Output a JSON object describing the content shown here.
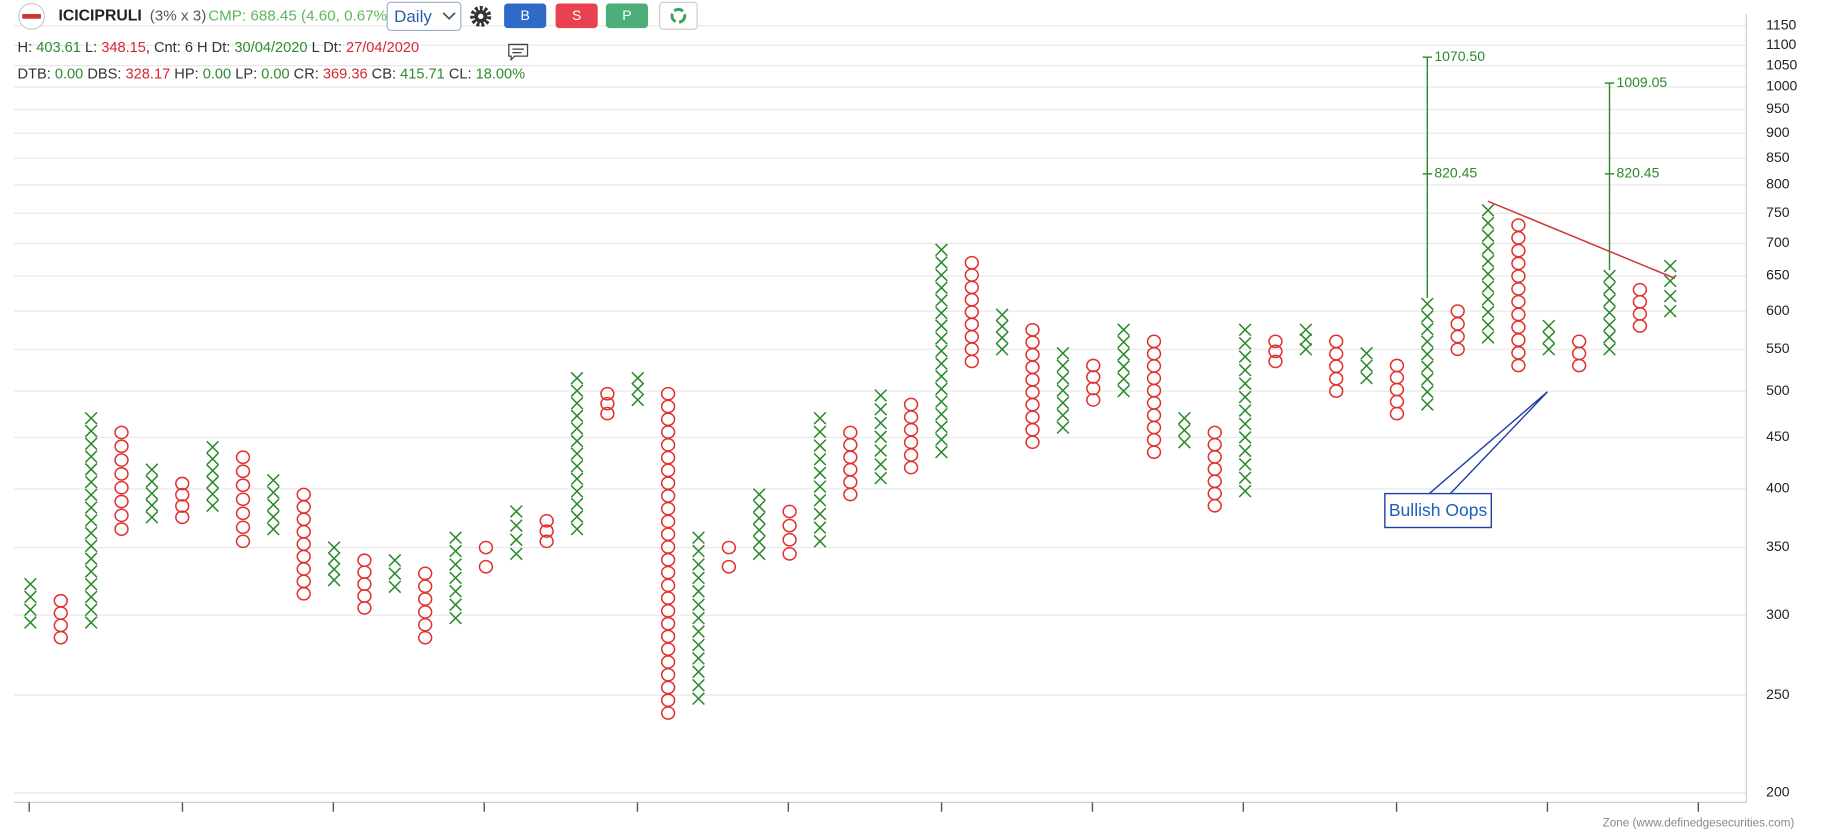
{
  "header": {
    "symbol": "ICICIPRULI",
    "box_info": "(3% x 3)",
    "cmp": "CMP: 688.45 (4.60, 0.67%)",
    "timeframe": "Daily (",
    "buttons": [
      "B",
      "S",
      "P"
    ]
  },
  "info_lines": [
    [
      {
        "text": "H: ",
        "color": "#333333"
      },
      {
        "text": "403.61",
        "color": "#2e8b2e"
      },
      {
        "text": " L: ",
        "color": "#333333"
      },
      {
        "text": "348.15",
        "color": "#d9262e"
      },
      {
        "text": ", Cnt: 6 H Dt: ",
        "color": "#333333"
      },
      {
        "text": "30/04/2020",
        "color": "#2e8b2e"
      },
      {
        "text": " L Dt: ",
        "color": "#333333"
      },
      {
        "text": "27/04/2020",
        "color": "#d9262e"
      }
    ],
    [
      {
        "text": "DTB: ",
        "color": "#333333"
      },
      {
        "text": "0.00",
        "color": "#2e8b2e"
      },
      {
        "text": " DBS: ",
        "color": "#333333"
      },
      {
        "text": "328.17",
        "color": "#d9262e"
      },
      {
        "text": " HP: ",
        "color": "#333333"
      },
      {
        "text": "0.00",
        "color": "#2e8b2e"
      },
      {
        "text": " LP: ",
        "color": "#333333"
      },
      {
        "text": "0.00",
        "color": "#2e8b2e"
      },
      {
        "text": " CR: ",
        "color": "#333333"
      },
      {
        "text": "369.36",
        "color": "#d9262e"
      },
      {
        "text": " CB: ",
        "color": "#333333"
      },
      {
        "text": "415.71",
        "color": "#2e8b2e"
      },
      {
        "text": " CL: ",
        "color": "#333333"
      },
      {
        "text": "18.00%",
        "color": "#2e8b2e"
      }
    ]
  ],
  "chart_data": {
    "type": "pnf",
    "log_scale": true,
    "grid": true,
    "box_size_percent": 3,
    "x_color": "#2a8a2a",
    "o_color": "#e0312f",
    "ylim": [
      200,
      1150
    ],
    "yticks": [
      200,
      250,
      300,
      350,
      400,
      450,
      500,
      550,
      600,
      650,
      700,
      750,
      800,
      850,
      900,
      950,
      1000,
      1050,
      1100,
      1150
    ],
    "columns": [
      {
        "type": "X",
        "low": 295,
        "high": 322
      },
      {
        "type": "O",
        "low": 285,
        "high": 310
      },
      {
        "type": "X",
        "low": 295,
        "high": 470
      },
      {
        "type": "O",
        "low": 365,
        "high": 455
      },
      {
        "type": "X",
        "low": 375,
        "high": 418
      },
      {
        "type": "O",
        "low": 375,
        "high": 405
      },
      {
        "type": "X",
        "low": 385,
        "high": 440
      },
      {
        "type": "O",
        "low": 355,
        "high": 430
      },
      {
        "type": "X",
        "low": 365,
        "high": 408
      },
      {
        "type": "O",
        "low": 315,
        "high": 395
      },
      {
        "type": "X",
        "low": 325,
        "high": 350
      },
      {
        "type": "O",
        "low": 305,
        "high": 340
      },
      {
        "type": "X",
        "low": 320,
        "high": 340
      },
      {
        "type": "O",
        "low": 285,
        "high": 330
      },
      {
        "type": "X",
        "low": 298,
        "high": 358
      },
      {
        "type": "O",
        "low": 335,
        "high": 350
      },
      {
        "type": "X",
        "low": 345,
        "high": 380
      },
      {
        "type": "O",
        "low": 355,
        "high": 372
      },
      {
        "type": "X",
        "low": 365,
        "high": 515
      },
      {
        "type": "O",
        "low": 475,
        "high": 497
      },
      {
        "type": "X",
        "low": 490,
        "high": 515
      },
      {
        "type": "O",
        "low": 240,
        "high": 497
      },
      {
        "type": "X",
        "low": 248,
        "high": 358
      },
      {
        "type": "O",
        "low": 335,
        "high": 350
      },
      {
        "type": "X",
        "low": 345,
        "high": 395
      },
      {
        "type": "O",
        "low": 345,
        "high": 380
      },
      {
        "type": "X",
        "low": 355,
        "high": 470
      },
      {
        "type": "O",
        "low": 395,
        "high": 455
      },
      {
        "type": "X",
        "low": 410,
        "high": 495
      },
      {
        "type": "O",
        "low": 420,
        "high": 485
      },
      {
        "type": "X",
        "low": 435,
        "high": 690
      },
      {
        "type": "O",
        "low": 535,
        "high": 670
      },
      {
        "type": "X",
        "low": 550,
        "high": 595
      },
      {
        "type": "O",
        "low": 445,
        "high": 575
      },
      {
        "type": "X",
        "low": 460,
        "high": 545
      },
      {
        "type": "O",
        "low": 490,
        "high": 530
      },
      {
        "type": "X",
        "low": 500,
        "high": 575
      },
      {
        "type": "O",
        "low": 435,
        "high": 560
      },
      {
        "type": "X",
        "low": 445,
        "high": 470
      },
      {
        "type": "O",
        "low": 385,
        "high": 455
      },
      {
        "type": "X",
        "low": 398,
        "high": 575
      },
      {
        "type": "O",
        "low": 535,
        "high": 560
      },
      {
        "type": "X",
        "low": 550,
        "high": 575
      },
      {
        "type": "O",
        "low": 500,
        "high": 560
      },
      {
        "type": "X",
        "low": 515,
        "high": 545
      },
      {
        "type": "O",
        "low": 475,
        "high": 530
      },
      {
        "type": "X",
        "low": 485,
        "high": 610,
        "targets": [
          {
            "value": 1070.5,
            "label": "1070.50"
          },
          {
            "value": 820.45,
            "label": "820.45"
          }
        ]
      },
      {
        "type": "O",
        "low": 550,
        "high": 600
      },
      {
        "type": "X",
        "low": 565,
        "high": 755
      },
      {
        "type": "O",
        "low": 530,
        "high": 730
      },
      {
        "type": "X",
        "low": 550,
        "high": 580
      },
      {
        "type": "O",
        "low": 530,
        "high": 560
      },
      {
        "type": "X",
        "low": 550,
        "high": 650,
        "targets": [
          {
            "value": 1009.05,
            "label": "1009.05"
          },
          {
            "value": 820.45,
            "label": "820.45"
          }
        ]
      },
      {
        "type": "O",
        "low": 580,
        "high": 630
      },
      {
        "type": "X",
        "low": 600,
        "high": 665
      }
    ],
    "annotation": "Bullish Oops"
  },
  "footer": "Zone (www.definedgesecurities.com)"
}
